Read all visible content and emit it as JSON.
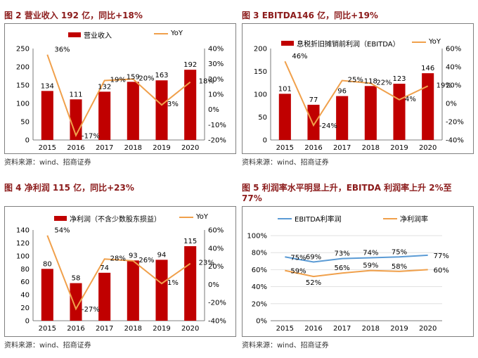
{
  "colors": {
    "bar": "#c00000",
    "yoy": "#f0a04b",
    "ebitda_margin": "#5b9bd5",
    "net_margin": "#f0a04b",
    "title": "#8b1a1a"
  },
  "chart_data": [
    {
      "type": "bar",
      "title": "图 2 营业收入 192 亿，同比+18%",
      "categories": [
        "2015",
        "2016",
        "2017",
        "2018",
        "2019",
        "2020"
      ],
      "series": [
        {
          "name": "营业收入",
          "type": "bar",
          "axis": "left",
          "values": [
            134,
            111,
            132,
            159,
            163,
            192
          ],
          "labels": [
            "134",
            "111",
            "132",
            "159",
            "163",
            "192"
          ]
        },
        {
          "name": "YoY",
          "type": "line",
          "axis": "right",
          "values": [
            36,
            -17,
            19,
            20,
            3,
            18
          ],
          "labels": [
            "36%",
            "-17%",
            "19%",
            "20%",
            "3%",
            "18%"
          ]
        }
      ],
      "ylim": [
        0,
        250
      ],
      "yticks": [
        "0",
        "50",
        "100",
        "150",
        "200",
        "250"
      ],
      "y2lim": [
        -20,
        40
      ],
      "y2ticks": [
        "-20%",
        "-10%",
        "0%",
        "10%",
        "20%",
        "30%",
        "40%"
      ],
      "source": "资料来源：wind、招商证券"
    },
    {
      "type": "bar",
      "title": "图 3 EBITDA146 亿，同比+19%",
      "categories": [
        "2015",
        "2016",
        "2017",
        "2018",
        "2019",
        "2020"
      ],
      "series": [
        {
          "name": "息税折旧摊销前利润（EBITDA）",
          "type": "bar",
          "axis": "left",
          "values": [
            101,
            77,
            96,
            118,
            123,
            146
          ],
          "labels": [
            "101",
            "77",
            "96",
            "118",
            "123",
            "146"
          ]
        },
        {
          "name": "YoY",
          "type": "line",
          "axis": "right",
          "values": [
            46,
            -24,
            25,
            22,
            4,
            19
          ],
          "labels": [
            "46%",
            "-24%",
            "25%",
            "22%",
            "4%",
            "19%"
          ]
        }
      ],
      "ylim": [
        0,
        200
      ],
      "yticks": [
        "0",
        "50",
        "100",
        "150",
        "200"
      ],
      "y2lim": [
        -40,
        60
      ],
      "y2ticks": [
        "-40%",
        "-20%",
        "0%",
        "20%",
        "40%",
        "60%"
      ],
      "source": "资料来源：wind、招商证券"
    },
    {
      "type": "bar",
      "title": "图 4 净利润 115 亿，同比+23%",
      "categories": [
        "2015",
        "2016",
        "2017",
        "2018",
        "2019",
        "2020"
      ],
      "series": [
        {
          "name": "净利润（不含少数股东损益）",
          "type": "bar",
          "axis": "left",
          "values": [
            80,
            58,
            74,
            93,
            94,
            115
          ],
          "labels": [
            "80",
            "58",
            "74",
            "93",
            "94",
            "115"
          ]
        },
        {
          "name": "YoY",
          "type": "line",
          "axis": "right",
          "values": [
            54,
            -27,
            28,
            26,
            1,
            23
          ],
          "labels": [
            "54%",
            "-27%",
            "28%",
            "26%",
            "1%",
            "23%"
          ]
        }
      ],
      "ylim": [
        0,
        140
      ],
      "yticks": [
        "0",
        "20",
        "40",
        "60",
        "80",
        "100",
        "120",
        "140"
      ],
      "y2lim": [
        -40,
        60
      ],
      "y2ticks": [
        "-40%",
        "-20%",
        "0%",
        "20%",
        "40%",
        "60%"
      ],
      "source": "资料来源：wind、招商证券"
    },
    {
      "type": "line",
      "title": "图 5 利润率水平明显上升，EBITDA 利润率上升 2%至 77%",
      "categories": [
        "2015",
        "2016",
        "2017",
        "2018",
        "2019",
        "2020"
      ],
      "series": [
        {
          "name": "EBITDA利率润",
          "values": [
            75,
            69,
            73,
            74,
            75,
            77
          ],
          "labels": [
            "75%",
            "69%",
            "73%",
            "74%",
            "75%",
            "77%"
          ]
        },
        {
          "name": "净利润率",
          "values": [
            59,
            52,
            56,
            59,
            58,
            60
          ],
          "labels": [
            "59%",
            "52%",
            "56%",
            "59%",
            "58%",
            "60%"
          ]
        }
      ],
      "ylim": [
        0,
        100
      ],
      "yticks": [
        "0%",
        "20%",
        "40%",
        "60%",
        "80%",
        "100%"
      ],
      "source": "资料来源：wind、招商证券"
    }
  ]
}
